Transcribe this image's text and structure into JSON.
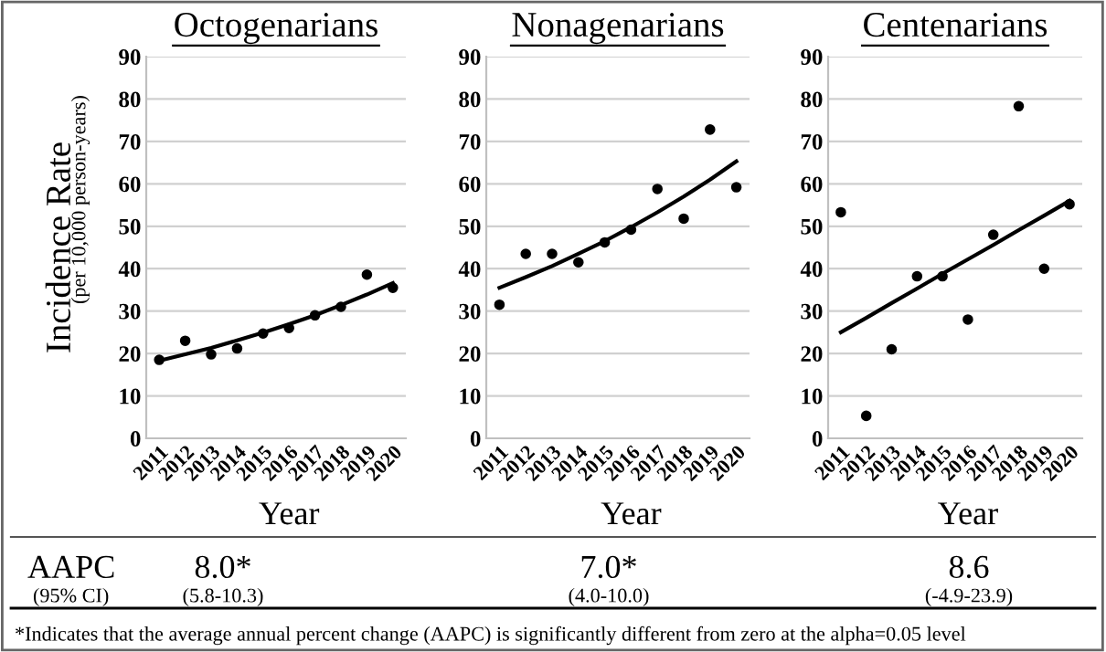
{
  "chart_data": [
    {
      "type": "scatter",
      "title": "Octogenarians",
      "xlabel": "Year",
      "ylabel": "Incidence Rate",
      "categories": [
        "2011",
        "2012",
        "2013",
        "2014",
        "2015",
        "2016",
        "2017",
        "2018",
        "2019",
        "2020"
      ],
      "ylim": [
        0,
        90
      ],
      "yticks": [
        0,
        10,
        20,
        30,
        40,
        50,
        60,
        70,
        80,
        90
      ],
      "grid": "y",
      "marker": "circle",
      "series": [
        {
          "color": "#000000",
          "values": [
            18.5,
            23,
            19.8,
            21.2,
            24.7,
            26,
            29,
            31,
            38.6,
            35.5
          ]
        },
        {
          "type": "line",
          "color": "#000000",
          "marker": "none",
          "values": [
            18.3,
            19.8,
            21.3,
            23.1,
            24.9,
            26.9,
            29.0,
            31.4,
            33.9,
            36.6
          ]
        }
      ],
      "annotations": [
        "(per 10,000 person-years)",
        "AAPC",
        "(95% CI)",
        "8.0*",
        "(5.8-10.3)",
        "*Indicates that the average annual percent change (AAPC) is significantly different from zero at the alpha=0.05 level"
      ]
    },
    {
      "type": "scatter",
      "title": "Nonagenarians",
      "xlabel": "Year",
      "categories": [
        "2011",
        "2012",
        "2013",
        "2014",
        "2015",
        "2016",
        "2017",
        "2018",
        "2019",
        "2020"
      ],
      "ylim": [
        0,
        90
      ],
      "yticks": [
        0,
        10,
        20,
        30,
        40,
        50,
        60,
        70,
        80,
        90
      ],
      "grid": "y",
      "marker": "circle",
      "series": [
        {
          "color": "#000000",
          "values": [
            31.5,
            43.5,
            43.5,
            41.5,
            46.2,
            49.2,
            58.8,
            51.8,
            72.8,
            59.2
          ]
        },
        {
          "type": "line",
          "color": "#000000",
          "marker": "none",
          "values": [
            35.5,
            38.0,
            40.6,
            43.5,
            46.5,
            49.8,
            53.3,
            57.0,
            61.0,
            65.3
          ]
        }
      ],
      "annotations": [
        "7.0*",
        "(4.0-10.0)"
      ]
    },
    {
      "type": "scatter",
      "title": "Centenarians",
      "xlabel": "Year",
      "categories": [
        "2011",
        "2012",
        "2013",
        "2014",
        "2015",
        "2016",
        "2017",
        "2018",
        "2019",
        "2020"
      ],
      "ylim": [
        0,
        90
      ],
      "yticks": [
        0,
        10,
        20,
        30,
        40,
        50,
        60,
        70,
        80,
        90
      ],
      "grid": "y",
      "marker": "circle",
      "series": [
        {
          "color": "#000000",
          "values": [
            53.3,
            5.3,
            21,
            38.2,
            38.2,
            28,
            48,
            78.3,
            40,
            55.2
          ]
        },
        {
          "type": "line",
          "color": "#000000",
          "marker": "none",
          "values": [
            25.0,
            28.4,
            31.9,
            35.3,
            38.8,
            42.2,
            45.6,
            49.1,
            52.5,
            56.0
          ]
        }
      ],
      "annotations": [
        "8.6",
        "(-4.9-23.9)"
      ]
    }
  ]
}
